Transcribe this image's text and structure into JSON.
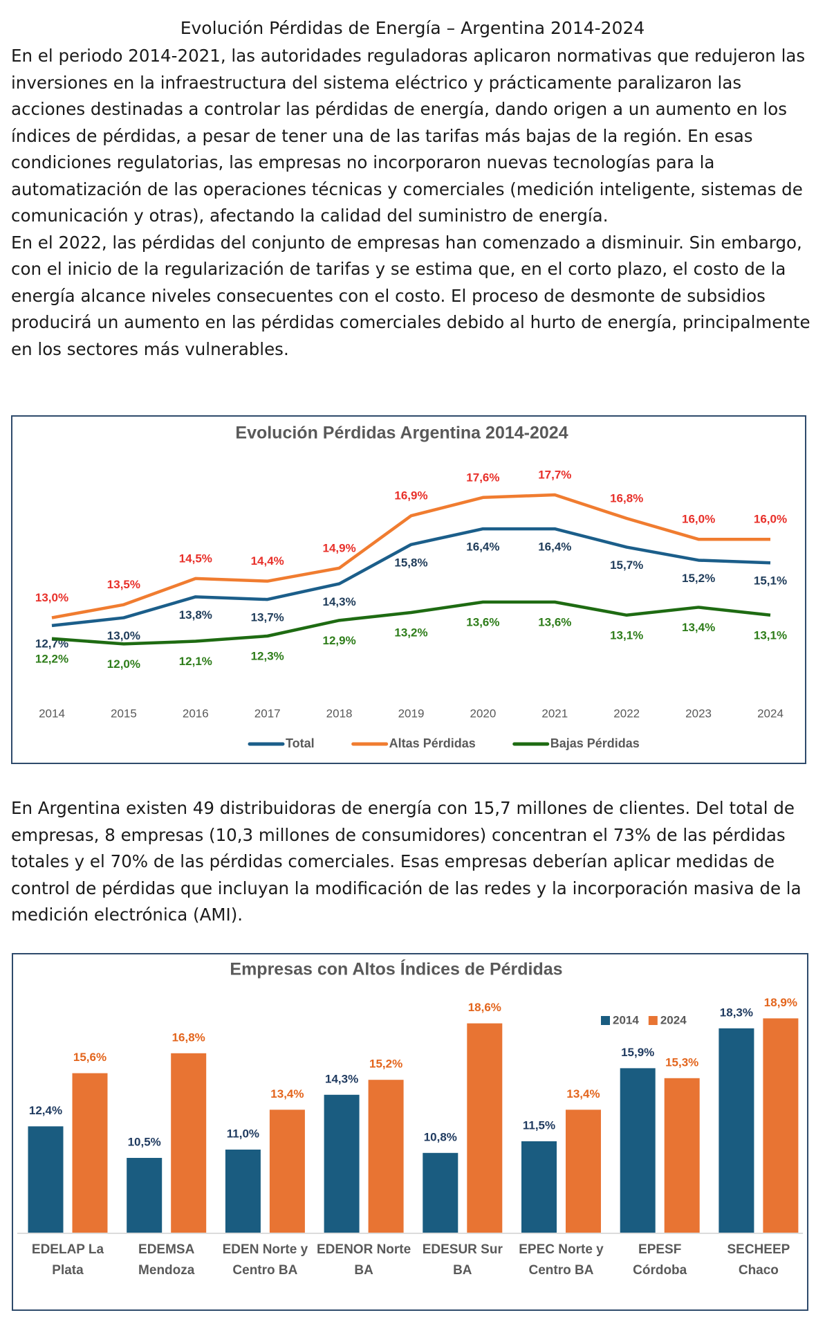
{
  "document": {
    "title": "Evolución Pérdidas de Energía – Argentina 2014-2024",
    "paragraphs": [
      "En el periodo 2014-2021, las autoridades reguladoras aplicaron normativas que redujeron las inversiones en la infraestructura del sistema eléctrico y prácticamente paralizaron las acciones destinadas a controlar las pérdidas de energía, dando origen a un aumento en los índices de pérdidas, a pesar de tener una de las tarifas más bajas de la región. En esas condiciones regulatorias, las empresas no incorporaron nuevas tecnologías para la automatización de las operaciones técnicas y comerciales (medición inteligente, sistemas de comunicación y otras), afectando la calidad del suministro de energía.",
      "En el 2022, las pérdidas del conjunto de empresas han comenzado a disminuir. Sin embargo, con el inicio de la regularización de tarifas y se estima que, en el corto plazo, el costo de la energía alcance niveles consecuentes con el costo. El proceso de desmonte de subsidios producirá un aumento en las pérdidas comerciales debido al hurto de energía, principalmente en los sectores más vulnerables.",
      "En Argentina existen 49 distribuidoras de energía con 15,7 millones de clientes. Del total de empresas, 8 empresas (10,3 millones de consumidores) concentran el 73% de las pérdidas totales y el 70% de las pérdidas comerciales. Esas empresas deberían aplicar medidas de control de pérdidas que incluyan la modificación de las redes y la incorporación masiva de la medición electrónica (AMI)."
    ]
  },
  "chart_data": [
    {
      "type": "line",
      "title": "Evolución Pérdidas Argentina 2014-2024",
      "categories": [
        "2014",
        "2015",
        "2016",
        "2017",
        "2018",
        "2019",
        "2020",
        "2021",
        "2022",
        "2023",
        "2024"
      ],
      "ylim": [
        10.5,
        19.5
      ],
      "legend": "bottom",
      "series": [
        {
          "name": "Total",
          "color": "#1b5e8a",
          "label_color": "#1f3c5a",
          "values": [
            12.7,
            13.0,
            13.8,
            13.7,
            14.3,
            15.8,
            16.4,
            16.4,
            15.7,
            15.2,
            15.1
          ],
          "value_labels": [
            "12,7%",
            "13,0%",
            "13,8%",
            "13,7%",
            "14,3%",
            "15,8%",
            "16,4%",
            "16,4%",
            "15,7%",
            "15,2%",
            "15,1%"
          ]
        },
        {
          "name": "Altas Pérdidas",
          "color": "#f07c30",
          "label_color": "#e8302a",
          "values": [
            13.0,
            13.5,
            14.5,
            14.4,
            14.9,
            16.9,
            17.6,
            17.7,
            16.8,
            16.0,
            16.0
          ],
          "value_labels": [
            "13,0%",
            "13,5%",
            "14,5%",
            "14,4%",
            "14,9%",
            "16,9%",
            "17,6%",
            "17,7%",
            "16,8%",
            "16,0%",
            "16,0%"
          ]
        },
        {
          "name": "Bajas Pérdidas",
          "color": "#1e6b12",
          "label_color": "#2e7d1a",
          "values": [
            12.2,
            12.0,
            12.1,
            12.3,
            12.9,
            13.2,
            13.6,
            13.6,
            13.1,
            13.4,
            13.1
          ],
          "value_labels": [
            "12,2%",
            "12,0%",
            "12,1%",
            "12,3%",
            "12,9%",
            "13,2%",
            "13,6%",
            "13,6%",
            "13,1%",
            "13,4%",
            "13,1%"
          ]
        }
      ]
    },
    {
      "type": "bar",
      "title": "Empresas con Altos Índices de Pérdidas",
      "categories": [
        "EDELAP La Plata",
        "EDEMSA Mendoza",
        "EDEN Norte y Centro BA",
        "EDENOR Norte BA",
        "EDESUR Sur BA",
        "EPEC Norte y Centro BA",
        "EPESF Córdoba",
        "SECHEEP Chaco"
      ],
      "ylim": [
        6,
        19
      ],
      "legend": "top-right",
      "series": [
        {
          "name": "2014",
          "color": "#1a5c80",
          "label_color": "#1f3a5f",
          "values": [
            12.4,
            10.5,
            11.0,
            14.3,
            10.8,
            11.5,
            15.9,
            18.3
          ],
          "value_labels": [
            "12,4%",
            "10,5%",
            "11,0%",
            "14,3%",
            "10,8%",
            "11,5%",
            "15,9%",
            "18,3%"
          ]
        },
        {
          "name": "2024",
          "color": "#e87433",
          "label_color": "#e3651d",
          "values": [
            15.6,
            16.8,
            13.4,
            15.2,
            18.6,
            13.4,
            15.3,
            18.9
          ],
          "value_labels": [
            "15,6%",
            "16,8%",
            "13,4%",
            "15,2%",
            "18,6%",
            "13,4%",
            "15,3%",
            "18,9%"
          ]
        }
      ]
    }
  ]
}
